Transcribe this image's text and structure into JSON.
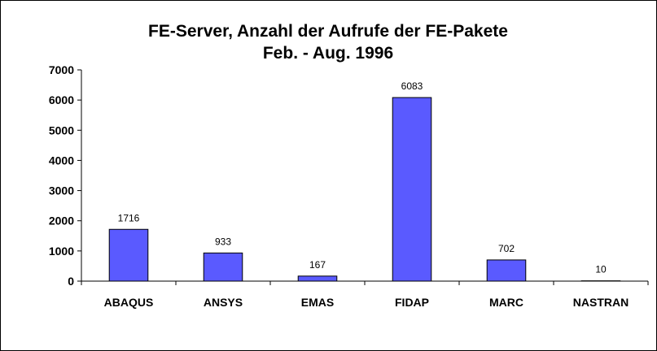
{
  "chart_data": {
    "type": "bar",
    "title": "FE-Server, Anzahl der Aufrufe der FE-Pakete",
    "subtitle": "Feb. - Aug. 1996",
    "xlabel": "",
    "ylabel": "",
    "categories": [
      "ABAQUS",
      "ANSYS",
      "EMAS",
      "FIDAP",
      "MARC",
      "NASTRAN"
    ],
    "values": [
      1716,
      933,
      167,
      6083,
      702,
      10
    ],
    "data_labels": [
      "1716",
      "933",
      "167",
      "6083",
      "702",
      "10"
    ],
    "ylim": [
      0,
      7000
    ],
    "yticks": [
      0,
      1000,
      2000,
      3000,
      4000,
      5000,
      6000,
      7000
    ],
    "ytick_labels": [
      "0",
      "1000",
      "2000",
      "3000",
      "4000",
      "5000",
      "6000",
      "7000"
    ],
    "grid": false,
    "legend": "none",
    "bar_color": "#5a5aff"
  }
}
